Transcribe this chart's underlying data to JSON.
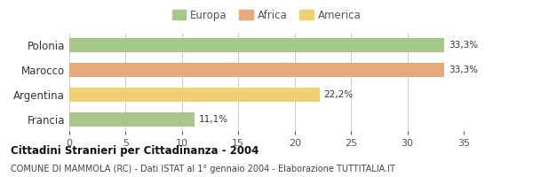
{
  "categories": [
    "Francia",
    "Argentina",
    "Marocco",
    "Polonia"
  ],
  "values": [
    11.1,
    22.2,
    33.3,
    33.3
  ],
  "bar_colors": [
    "#a8c78a",
    "#f0d070",
    "#e8a97a",
    "#a8c78a"
  ],
  "bar_labels": [
    "11,1%",
    "22,2%",
    "33,3%",
    "33,3%"
  ],
  "legend_items": [
    {
      "label": "Europa",
      "color": "#a8c78a"
    },
    {
      "label": "Africa",
      "color": "#e8a97a"
    },
    {
      "label": "America",
      "color": "#f0d070"
    }
  ],
  "xlim": [
    0,
    35
  ],
  "xticks": [
    0,
    5,
    10,
    15,
    20,
    25,
    30,
    35
  ],
  "title": "Cittadini Stranieri per Cittadinanza - 2004",
  "subtitle": "COMUNE DI MAMMOLA (RC) - Dati ISTAT al 1° gennaio 2004 - Elaborazione TUTTITALIA.IT",
  "background_color": "#ffffff",
  "grid_color": "#cccccc"
}
